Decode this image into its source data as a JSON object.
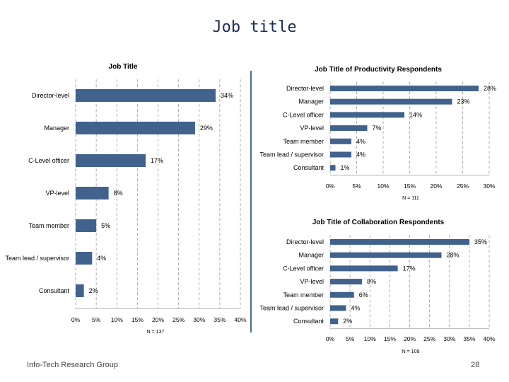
{
  "slide": {
    "title": "Job title",
    "footer": "Info-Tech Research Group",
    "page_number": "28"
  },
  "colors": {
    "bar": "#41628c",
    "grid": "#9a9a9a"
  },
  "chart_data": [
    {
      "type": "bar",
      "orientation": "horizontal",
      "title": "Job Title",
      "categories": [
        "Director-level",
        "Manager",
        "C-Level officer",
        "VP-level",
        "Team member",
        "Team lead / supervisor",
        "Consultant"
      ],
      "values": [
        34,
        29,
        17,
        8,
        5,
        4,
        2
      ],
      "value_labels": [
        "34%",
        "29%",
        "17%",
        "8%",
        "5%",
        "4%",
        "2%"
      ],
      "xlim": [
        0,
        40
      ],
      "ticks": [
        "0%",
        "5%",
        "10%",
        "15%",
        "20%",
        "25%",
        "30%",
        "35%",
        "40%"
      ],
      "grid": true,
      "n_label": "N = 137"
    },
    {
      "type": "bar",
      "orientation": "horizontal",
      "title": "Job Title of Productivity Respondents",
      "categories": [
        "Director-level",
        "Manager",
        "C-Level officer",
        "VP-level",
        "Team member",
        "Team lead / supervisor",
        "Consultant"
      ],
      "values": [
        28,
        23,
        14,
        7,
        4,
        4,
        1
      ],
      "value_labels": [
        "28%",
        "23%",
        "14%",
        "7%",
        "4%",
        "4%",
        "1%"
      ],
      "xlim": [
        0,
        30
      ],
      "ticks": [
        "0%",
        "5%",
        "10%",
        "15%",
        "20%",
        "25%",
        "30%"
      ],
      "grid": true,
      "n_label": "N = 111"
    },
    {
      "type": "bar",
      "orientation": "horizontal",
      "title": "Job Title of Collaboration Respondents",
      "categories": [
        "Director-level",
        "Manager",
        "C-Level officer",
        "VP-level",
        "Team member",
        "Team lead / supervisor",
        "Consultant"
      ],
      "values": [
        35,
        28,
        17,
        8,
        6,
        4,
        2
      ],
      "value_labels": [
        "35%",
        "28%",
        "17%",
        "8%",
        "6%",
        "4%",
        "2%"
      ],
      "xlim": [
        0,
        40
      ],
      "ticks": [
        "0%",
        "5%",
        "10%",
        "15%",
        "20%",
        "25%",
        "30%",
        "35%",
        "40%"
      ],
      "grid": true,
      "n_label": "N = 109"
    }
  ]
}
